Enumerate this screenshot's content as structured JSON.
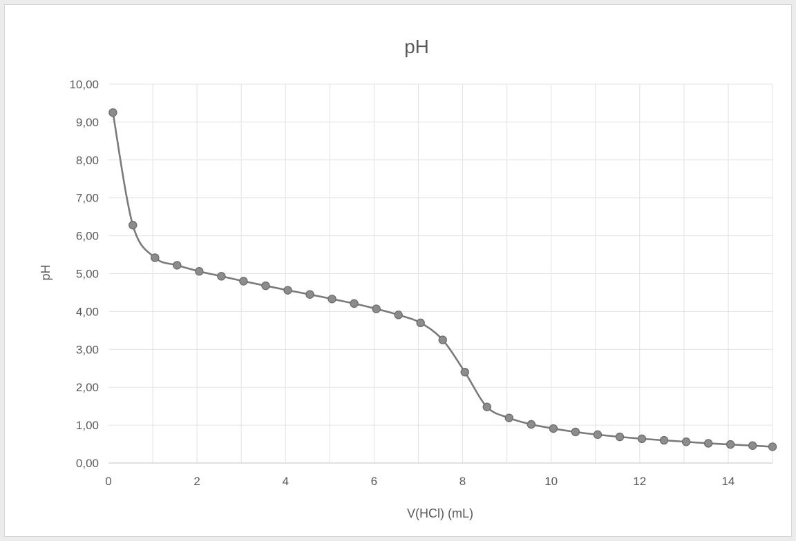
{
  "chart_data": {
    "type": "scatter",
    "title": "pH",
    "xlabel": "V(HCl) (mL)",
    "ylabel": "pH",
    "xlim": [
      0,
      15
    ],
    "ylim": [
      0,
      10
    ],
    "x_ticks": [
      {
        "value": 0,
        "label": "0"
      },
      {
        "value": 2,
        "label": "2"
      },
      {
        "value": 4,
        "label": "4"
      },
      {
        "value": 6,
        "label": "6"
      },
      {
        "value": 8,
        "label": "8"
      },
      {
        "value": 10,
        "label": "10"
      },
      {
        "value": 12,
        "label": "12"
      },
      {
        "value": 14,
        "label": "14"
      }
    ],
    "y_ticks": [
      {
        "value": 0,
        "label": "0,00"
      },
      {
        "value": 1,
        "label": "1,00"
      },
      {
        "value": 2,
        "label": "2,00"
      },
      {
        "value": 3,
        "label": "3,00"
      },
      {
        "value": 4,
        "label": "4,00"
      },
      {
        "value": 5,
        "label": "5,00"
      },
      {
        "value": 6,
        "label": "6,00"
      },
      {
        "value": 7,
        "label": "7,00"
      },
      {
        "value": 8,
        "label": "8,00"
      },
      {
        "value": 9,
        "label": "9,00"
      },
      {
        "value": 10,
        "label": "10,00"
      }
    ],
    "grid": true,
    "smooth_line": true,
    "series": [
      {
        "color": "#7a7a7a",
        "points": [
          {
            "x": 0.1,
            "y": 9.25
          },
          {
            "x": 0.55,
            "y": 6.28
          },
          {
            "x": 1.05,
            "y": 5.42
          },
          {
            "x": 1.55,
            "y": 5.22
          },
          {
            "x": 2.05,
            "y": 5.06
          },
          {
            "x": 2.55,
            "y": 4.93
          },
          {
            "x": 3.05,
            "y": 4.8
          },
          {
            "x": 3.55,
            "y": 4.68
          },
          {
            "x": 4.05,
            "y": 4.56
          },
          {
            "x": 4.55,
            "y": 4.45
          },
          {
            "x": 5.05,
            "y": 4.33
          },
          {
            "x": 5.55,
            "y": 4.21
          },
          {
            "x": 6.05,
            "y": 4.07
          },
          {
            "x": 6.55,
            "y": 3.91
          },
          {
            "x": 7.05,
            "y": 3.7
          },
          {
            "x": 7.55,
            "y": 3.25
          },
          {
            "x": 8.05,
            "y": 2.4
          },
          {
            "x": 8.55,
            "y": 1.48
          },
          {
            "x": 9.05,
            "y": 1.19
          },
          {
            "x": 9.55,
            "y": 1.02
          },
          {
            "x": 10.05,
            "y": 0.91
          },
          {
            "x": 10.55,
            "y": 0.82
          },
          {
            "x": 11.05,
            "y": 0.75
          },
          {
            "x": 11.55,
            "y": 0.69
          },
          {
            "x": 12.05,
            "y": 0.64
          },
          {
            "x": 12.55,
            "y": 0.6
          },
          {
            "x": 13.05,
            "y": 0.56
          },
          {
            "x": 13.55,
            "y": 0.52
          },
          {
            "x": 14.05,
            "y": 0.49
          },
          {
            "x": 14.55,
            "y": 0.46
          },
          {
            "x": 15.0,
            "y": 0.43
          }
        ]
      }
    ]
  }
}
